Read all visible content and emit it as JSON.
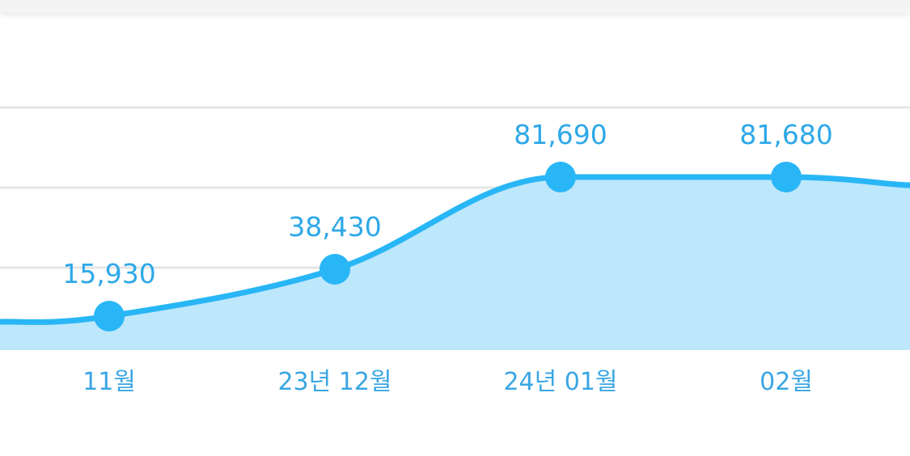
{
  "chart_data": {
    "type": "area",
    "categories": [
      "11월",
      "23년 12월",
      "24년 01월",
      "02월"
    ],
    "values": [
      15930,
      38430,
      81690,
      81680
    ],
    "data_labels": [
      "15,930",
      "38,430",
      "81,690",
      "81,680"
    ],
    "title": "",
    "xlabel": "",
    "ylabel": "",
    "grid": true,
    "legend": "none",
    "colors": {
      "line": "#29b6f6",
      "fill": "#bde7fa",
      "marker": "#29b6f6",
      "label": "#2ea8e8",
      "grid": "#e6e6e6"
    }
  }
}
